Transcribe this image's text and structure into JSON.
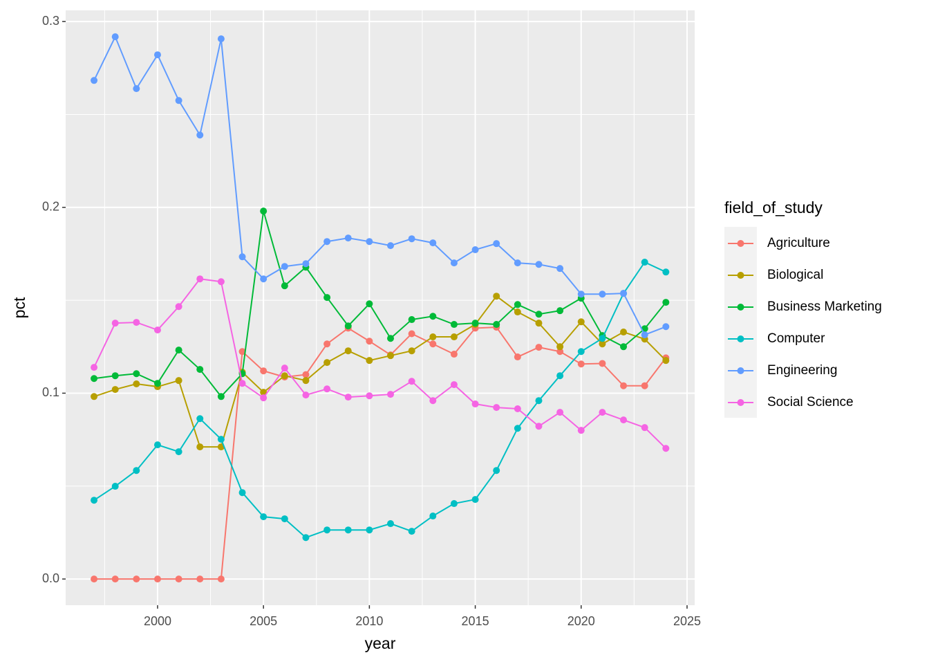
{
  "chart_data": {
    "type": "line",
    "x_label": "year",
    "y_label": "pct",
    "legend_title": "field_of_study",
    "x": [
      1997,
      1998,
      1999,
      2000,
      2001,
      2002,
      2003,
      2004,
      2005,
      2006,
      2007,
      2008,
      2009,
      2010,
      2011,
      2012,
      2013,
      2014,
      2015,
      2016,
      2017,
      2018,
      2019,
      2020,
      2021,
      2022,
      2023,
      2024
    ],
    "xlim": [
      1995.66,
      2025.36
    ],
    "xticks": [
      2000,
      2005,
      2010,
      2015,
      2020,
      2025
    ],
    "xminorticks": [
      1997.5,
      2002.5,
      2007.5,
      2012.5,
      2017.5,
      2022.5
    ],
    "ylim": [
      -0.0141,
      0.306
    ],
    "yticks": [
      {
        "value": 0,
        "label": "0.0"
      },
      0.1,
      0.2,
      0.3
    ],
    "yminorticks": [
      0.05,
      0.15,
      0.25
    ],
    "grid": true,
    "legend": "right",
    "series": [
      {
        "name": "Agriculture",
        "color": "#F8766D",
        "values": [
          0,
          0,
          0,
          0,
          0,
          0,
          0,
          0.1224,
          0.112,
          0.1087,
          0.11,
          0.1265,
          0.135,
          0.128,
          0.1206,
          0.132,
          0.1265,
          0.121,
          0.135,
          0.1355,
          0.1195,
          0.1247,
          0.1224,
          0.1157,
          0.116,
          0.104,
          0.104,
          0.119
        ]
      },
      {
        "name": "Biological",
        "color": "#B79F00",
        "values": [
          0.0982,
          0.102,
          0.105,
          0.1035,
          0.1068,
          0.0711,
          0.0711,
          0.1113,
          0.1005,
          0.1094,
          0.1068,
          0.1165,
          0.1228,
          0.1176,
          0.1202,
          0.1228,
          0.1303,
          0.1303,
          0.137,
          0.1522,
          0.1437,
          0.1377,
          0.125,
          0.1384,
          0.1265,
          0.1329,
          0.1291,
          0.1176
        ]
      },
      {
        "name": "Business Marketing",
        "color": "#00BA38",
        "values": [
          0.1079,
          0.1094,
          0.1105,
          0.1053,
          0.1232,
          0.1128,
          0.0982,
          0.1105,
          0.198,
          0.1578,
          0.1678,
          0.1515,
          0.1362,
          0.1481,
          0.1295,
          0.1396,
          0.1414,
          0.137,
          0.1377,
          0.137,
          0.1477,
          0.1425,
          0.1444,
          0.1511,
          0.131,
          0.125,
          0.1347,
          0.1489
        ]
      },
      {
        "name": "Computer",
        "color": "#00BFC4",
        "values": [
          0.0424,
          0.0499,
          0.0584,
          0.0722,
          0.0685,
          0.0863,
          0.0752,
          0.0465,
          0.0335,
          0.0324,
          0.0223,
          0.0264,
          0.0264,
          0.0264,
          0.0298,
          0.0257,
          0.0339,
          0.0406,
          0.0428,
          0.0584,
          0.0811,
          0.096,
          0.1094,
          0.1224,
          0.1295,
          0.1537,
          0.1705,
          0.1652
        ]
      },
      {
        "name": "Engineering",
        "color": "#619CFF",
        "values": [
          0.2683,
          0.2918,
          0.2639,
          0.2821,
          0.2575,
          0.2389,
          0.2907,
          0.1734,
          0.1615,
          0.1682,
          0.1697,
          0.1816,
          0.1835,
          0.1816,
          0.1794,
          0.1831,
          0.1809,
          0.1701,
          0.1772,
          0.1805,
          0.1701,
          0.1693,
          0.1671,
          0.1533,
          0.1533,
          0.1537,
          0.1314,
          0.1358
        ]
      },
      {
        "name": "Social Science",
        "color": "#F564E3",
        "values": [
          0.1139,
          0.1377,
          0.1381,
          0.134,
          0.1466,
          0.1615,
          0.16,
          0.1053,
          0.0975,
          0.1135,
          0.099,
          0.1023,
          0.0979,
          0.0986,
          0.0994,
          0.1064,
          0.096,
          0.1046,
          0.0942,
          0.0923,
          0.0916,
          0.0822,
          0.0897,
          0.08,
          0.0897,
          0.0856,
          0.0815,
          0.0703
        ]
      }
    ]
  }
}
